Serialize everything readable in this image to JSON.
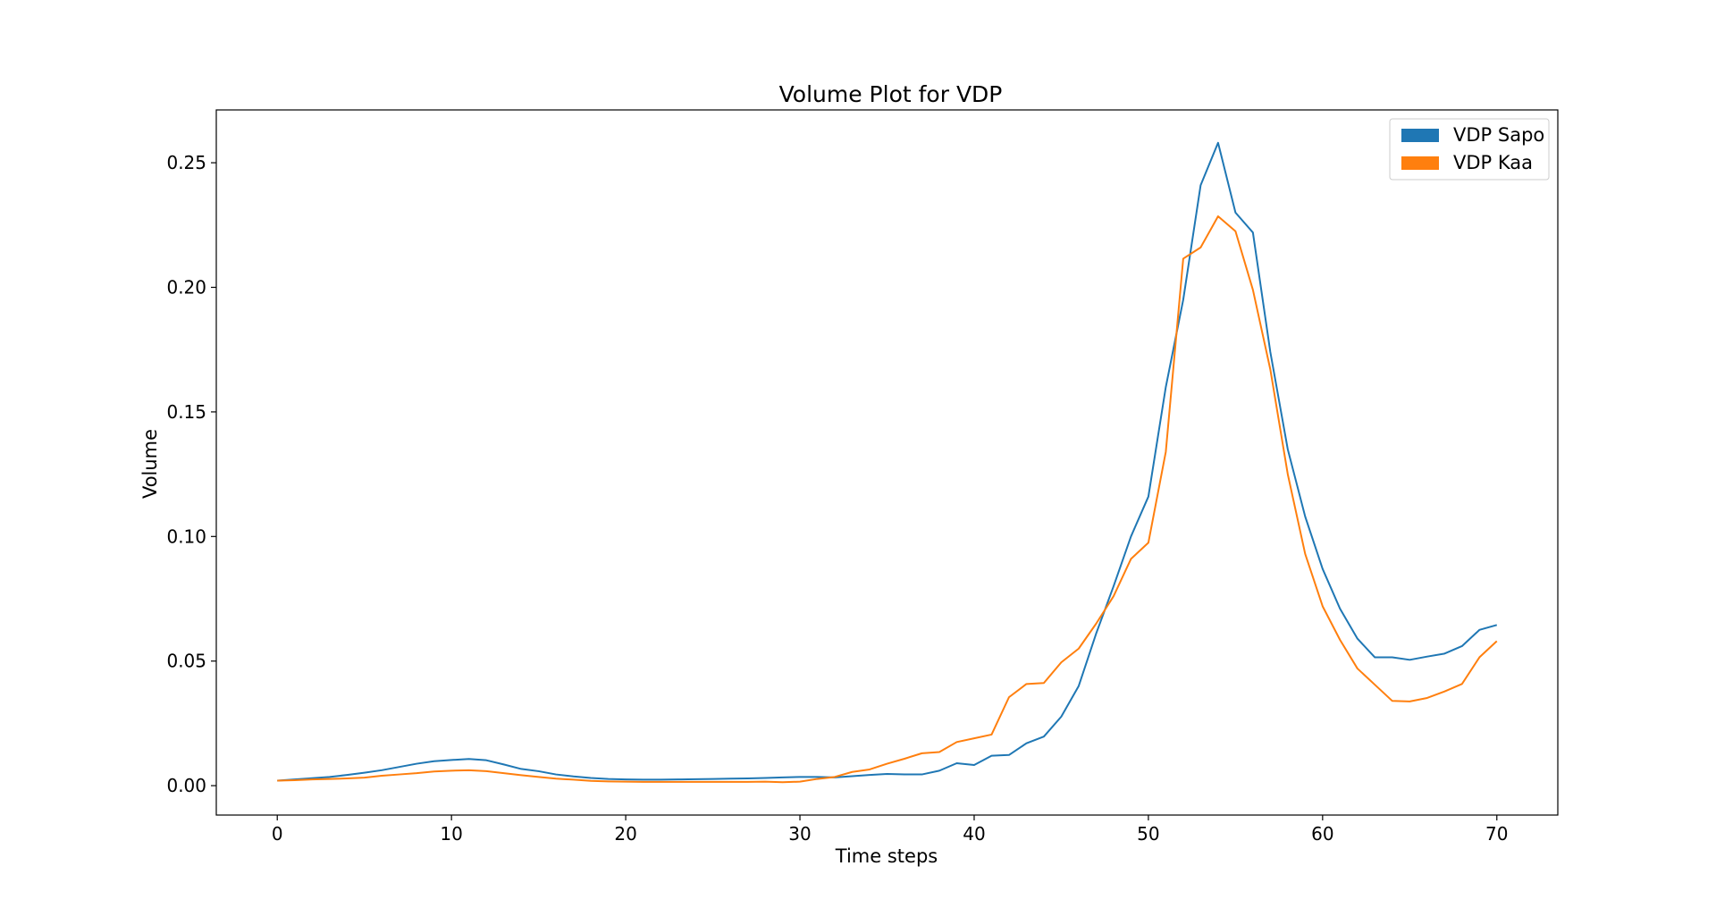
{
  "chart_data": {
    "type": "line",
    "title": "Volume Plot for VDP",
    "xlabel": "Time steps",
    "ylabel": "Volume",
    "xlim": [
      -3.5,
      73.5
    ],
    "ylim": [
      -0.0118,
      0.2712
    ],
    "xticks": [
      0,
      10,
      20,
      30,
      40,
      50,
      60,
      70
    ],
    "xtick_labels": [
      "0",
      "10",
      "20",
      "30",
      "40",
      "50",
      "60",
      "70"
    ],
    "yticks": [
      0.0,
      0.05,
      0.1,
      0.15,
      0.2,
      0.25
    ],
    "ytick_labels": [
      "0.00",
      "0.05",
      "0.10",
      "0.15",
      "0.20",
      "0.25"
    ],
    "grid": false,
    "legend_position": "top-right",
    "x": [
      0,
      1,
      2,
      3,
      4,
      5,
      6,
      7,
      8,
      9,
      10,
      11,
      12,
      13,
      14,
      15,
      16,
      17,
      18,
      19,
      20,
      21,
      22,
      23,
      24,
      25,
      26,
      27,
      28,
      29,
      30,
      31,
      32,
      33,
      34,
      35,
      36,
      37,
      38,
      39,
      40,
      41,
      42,
      43,
      44,
      45,
      46,
      47,
      48,
      49,
      50,
      51,
      52,
      53,
      54,
      55,
      56,
      57,
      58,
      59,
      60,
      61,
      62,
      63,
      64,
      65,
      66,
      67,
      68,
      69,
      70
    ],
    "series": [
      {
        "name": "VDP Sapo",
        "color": "#1f77b4",
        "values": [
          0.002,
          0.0025,
          0.003,
          0.0035,
          0.0043,
          0.0052,
          0.0062,
          0.0075,
          0.0088,
          0.0098,
          0.0103,
          0.0107,
          0.0102,
          0.0085,
          0.0067,
          0.0058,
          0.0045,
          0.0037,
          0.0031,
          0.0027,
          0.0025,
          0.0024,
          0.0024,
          0.0025,
          0.0026,
          0.0027,
          0.0028,
          0.0029,
          0.0031,
          0.0033,
          0.0035,
          0.0035,
          0.0033,
          0.0038,
          0.0043,
          0.0047,
          0.0045,
          0.0045,
          0.006,
          0.009,
          0.0083,
          0.012,
          0.0123,
          0.017,
          0.0197,
          0.0277,
          0.04,
          0.061,
          0.08,
          0.1,
          0.116,
          0.16,
          0.195,
          0.241,
          0.258,
          0.23,
          0.222,
          0.174,
          0.135,
          0.108,
          0.087,
          0.071,
          0.059,
          0.0515,
          0.0515,
          0.0505,
          0.0518,
          0.053,
          0.056,
          0.0625,
          0.0645
        ]
      },
      {
        "name": "VDP Kaa",
        "color": "#ff7f0e",
        "values": [
          0.002,
          0.0022,
          0.0025,
          0.0027,
          0.0029,
          0.0032,
          0.004,
          0.0045,
          0.005,
          0.0057,
          0.006,
          0.0062,
          0.0058,
          0.005,
          0.0042,
          0.0035,
          0.0028,
          0.0024,
          0.0019,
          0.0017,
          0.0016,
          0.0015,
          0.0015,
          0.0015,
          0.0015,
          0.0015,
          0.0015,
          0.0015,
          0.0016,
          0.0014,
          0.0016,
          0.0027,
          0.0035,
          0.0055,
          0.0065,
          0.0088,
          0.0108,
          0.013,
          0.0135,
          0.0175,
          0.019,
          0.0205,
          0.0355,
          0.0408,
          0.0412,
          0.0495,
          0.055,
          0.065,
          0.076,
          0.091,
          0.0975,
          0.134,
          0.2115,
          0.216,
          0.2285,
          0.2225,
          0.199,
          0.167,
          0.125,
          0.093,
          0.072,
          0.0585,
          0.047,
          0.0405,
          0.034,
          0.0338,
          0.0352,
          0.0378,
          0.0408,
          0.0515,
          0.058
        ]
      }
    ]
  }
}
